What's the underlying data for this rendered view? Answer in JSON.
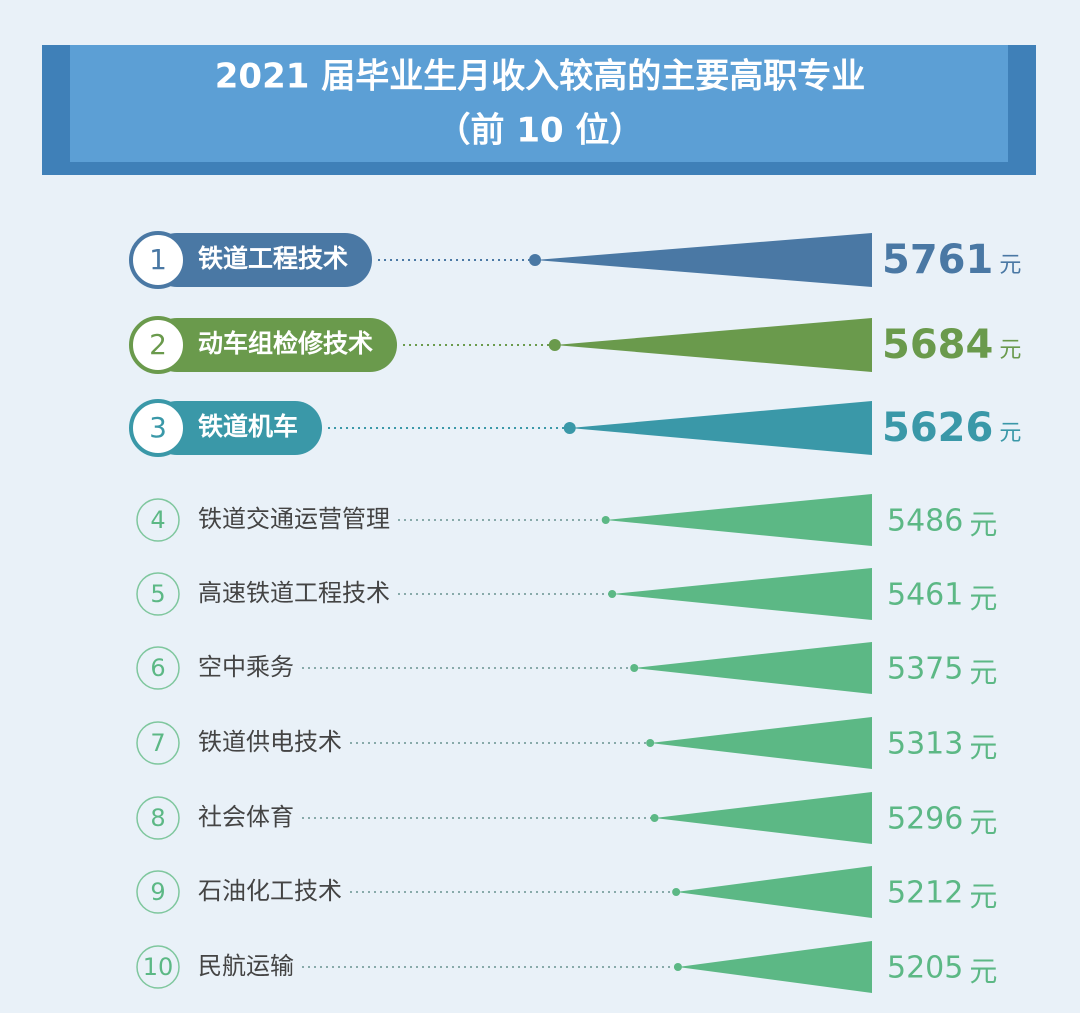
{
  "chart_data": {
    "type": "triangle-bar",
    "title": "2021 届毕业生月收入较高的主要高职专业",
    "subtitle": "（前 10 位）",
    "ranks": [
      1,
      2,
      3,
      4,
      5,
      6,
      7,
      8,
      9,
      10
    ],
    "categories": [
      "铁道工程技术",
      "动车组检修技术",
      "铁道机车",
      "铁道交通运营管理",
      "高速铁道工程技术",
      "空中乘务",
      "铁道供电技术",
      "社会体育",
      "石油化工技术",
      "民航运输"
    ],
    "values": [
      5761,
      5684,
      5626,
      5486,
      5461,
      5375,
      5313,
      5296,
      5212,
      5205
    ],
    "unit": "元",
    "colors": [
      "#4a78a4",
      "#6a9a4c",
      "#3a98a8",
      "#5cb885",
      "#5cb885",
      "#5cb885",
      "#5cb885",
      "#5cb885",
      "#5cb885",
      "#5cb885"
    ],
    "xlim": [
      4450,
      5800
    ]
  }
}
